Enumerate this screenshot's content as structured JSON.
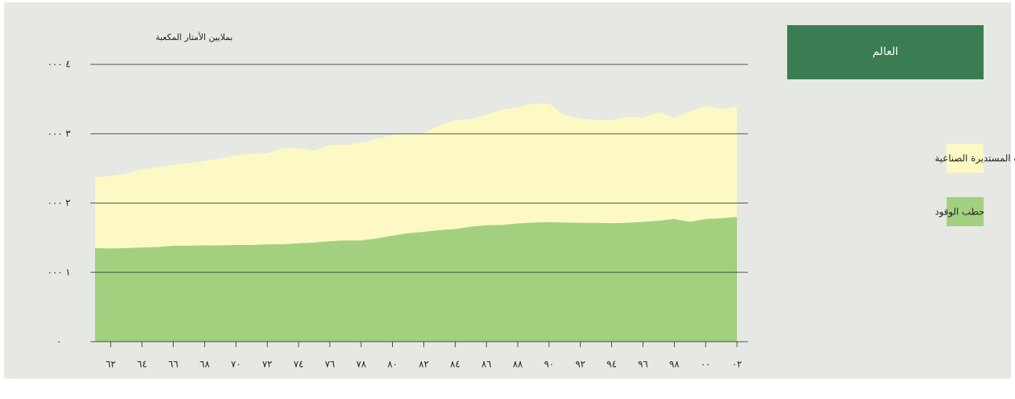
{
  "chart_data": {
    "type": "stacked_area",
    "title": "العالم",
    "y_label": "بملايين الأمتار المكعبة",
    "x": [
      1961,
      1962,
      1963,
      1964,
      1965,
      1966,
      1967,
      1968,
      1969,
      1970,
      1971,
      1972,
      1973,
      1974,
      1975,
      1976,
      1977,
      1978,
      1979,
      1980,
      1981,
      1982,
      1983,
      1984,
      1985,
      1986,
      1987,
      1988,
      1989,
      1990,
      1991,
      1992,
      1993,
      1994,
      1995,
      1996,
      1997,
      1998,
      1999,
      2000,
      2001,
      2002
    ],
    "series": [
      {
        "name": "حطب الوقود",
        "color": "#a3d07f",
        "values": [
          1350,
          1345,
          1350,
          1360,
          1365,
          1385,
          1385,
          1390,
          1390,
          1395,
          1395,
          1405,
          1405,
          1420,
          1430,
          1450,
          1460,
          1460,
          1490,
          1530,
          1565,
          1585,
          1610,
          1625,
          1660,
          1680,
          1685,
          1705,
          1720,
          1725,
          1720,
          1715,
          1715,
          1710,
          1715,
          1730,
          1745,
          1770,
          1730,
          1770,
          1780,
          1800
        ]
      },
      {
        "name": "الأخشاب المستديرة الصناعية",
        "color": "#fdf9c4",
        "values": [
          1020,
          1045,
          1075,
          1125,
          1150,
          1165,
          1190,
          1220,
          1250,
          1295,
          1315,
          1315,
          1385,
          1370,
          1325,
          1385,
          1375,
          1410,
          1435,
          1450,
          1440,
          1420,
          1510,
          1570,
          1550,
          1595,
          1665,
          1675,
          1715,
          1710,
          1545,
          1505,
          1480,
          1485,
          1530,
          1500,
          1565,
          1460,
          1590,
          1630,
          1575,
          1590
        ]
      }
    ],
    "xlim": [
      1960.7,
      2002.7
    ],
    "xticks": [
      {
        "value": 1962,
        "label": "٦٢"
      },
      {
        "value": 1964,
        "label": "٦٤"
      },
      {
        "value": 1966,
        "label": "٦٦"
      },
      {
        "value": 1968,
        "label": "٦٨"
      },
      {
        "value": 1970,
        "label": "٧٠"
      },
      {
        "value": 1972,
        "label": "٧٢"
      },
      {
        "value": 1974,
        "label": "٧٤"
      },
      {
        "value": 1976,
        "label": "٧٦"
      },
      {
        "value": 1978,
        "label": "٧٨"
      },
      {
        "value": 1980,
        "label": "٨٠"
      },
      {
        "value": 1982,
        "label": "٨٢"
      },
      {
        "value": 1984,
        "label": "٨٤"
      },
      {
        "value": 1986,
        "label": "٨٦"
      },
      {
        "value": 1988,
        "label": "٨٨"
      },
      {
        "value": 1990,
        "label": "٩٠"
      },
      {
        "value": 1992,
        "label": "٩٢"
      },
      {
        "value": 1994,
        "label": "٩٤"
      },
      {
        "value": 1996,
        "label": "٩٦"
      },
      {
        "value": 1998,
        "label": "٩٨"
      },
      {
        "value": 2000,
        "label": "٠٠"
      },
      {
        "value": 2002,
        "label": "٠٢"
      }
    ],
    "ylim": [
      0,
      4000
    ],
    "yticks": [
      {
        "value": 0,
        "label": "٠"
      },
      {
        "value": 1000,
        "label": "١ ٠٠٠"
      },
      {
        "value": 2000,
        "label": "٢ ٠٠٠"
      },
      {
        "value": 3000,
        "label": "٣ ٠٠٠"
      },
      {
        "value": 4000,
        "label": "٤ ٠٠٠"
      }
    ],
    "grid": true,
    "title_color": "#3a7d52"
  }
}
